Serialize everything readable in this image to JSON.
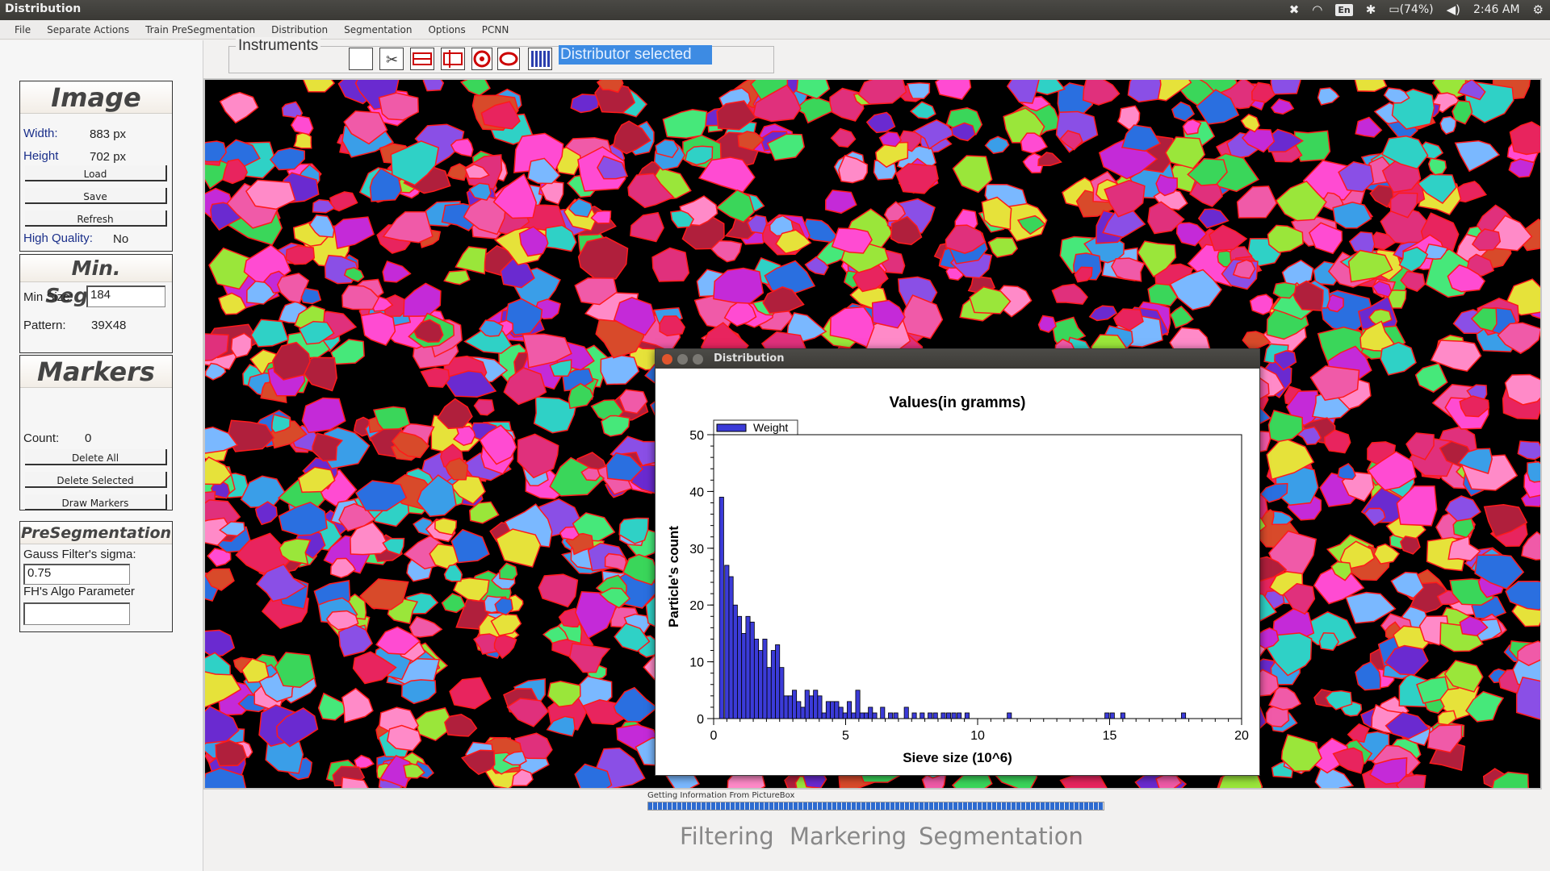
{
  "window": {
    "title": "Distribution"
  },
  "tray": {
    "lang": "En",
    "battery": "(74%)",
    "clock": "2:46 AM"
  },
  "menu": [
    "File",
    "Separate Actions",
    "Train PreSegmentation",
    "Distribution",
    "Segmentation",
    "Options",
    "PCNN"
  ],
  "image_group": {
    "title": "Image",
    "width_label": "Width:",
    "width_value": "883 px",
    "height_label": "Height",
    "height_value": "702 px",
    "load_label": "Load",
    "save_label": "Save",
    "refresh_label": "Refresh",
    "hq_label": "High Quality:",
    "hq_value": "No"
  },
  "min_segment": {
    "title": "Min. Segment",
    "min_size_label": "Min Size:",
    "min_size_value": "184",
    "pattern_label": "Pattern:",
    "pattern_value": "39X48"
  },
  "markers": {
    "title": "Markers",
    "count_label": "Count:",
    "count_value": "0",
    "delete_all_label": "Delete All",
    "delete_selected_label": "Delete Selected",
    "draw_markers_label": "Draw Markers"
  },
  "presegmentation": {
    "title": "PreSegmentation",
    "sigma_label": "Gauss Filter's sigma:",
    "sigma_value": "0.75",
    "fh_label": "FH's Algo Parameter",
    "fh_value": ""
  },
  "instruments": {
    "label": "Instruments",
    "tools": [
      "rectangle-tool-icon",
      "scissors-tool-icon",
      "ruler-tool-icon",
      "measure-tool-icon",
      "target-tool-icon",
      "ellipse-tool-icon",
      "distributor-tool-icon"
    ],
    "status": "Distributor selected"
  },
  "dialog": {
    "title": "Distribution"
  },
  "chart_data": {
    "type": "bar",
    "title": "Values(in gramms)",
    "xlabel": "Sieve size  (10^6)",
    "ylabel": "Particle's count",
    "legend": [
      "Weight"
    ],
    "legend_position": "top-left",
    "xlim": [
      0,
      20
    ],
    "ylim": [
      0,
      50
    ],
    "xticks": [
      0,
      5,
      10,
      15,
      20
    ],
    "yticks": [
      0,
      10,
      20,
      30,
      40,
      50
    ],
    "bar_width": 0.16,
    "series": [
      {
        "name": "Weight",
        "color": "#3b3bd8",
        "x": [
          0.3,
          0.5,
          0.66,
          0.82,
          0.98,
          1.14,
          1.3,
          1.46,
          1.62,
          1.78,
          1.94,
          2.1,
          2.26,
          2.42,
          2.58,
          2.74,
          2.9,
          3.06,
          3.22,
          3.38,
          3.54,
          3.7,
          3.86,
          4.02,
          4.18,
          4.34,
          4.5,
          4.66,
          4.82,
          4.98,
          5.14,
          5.3,
          5.46,
          5.62,
          5.78,
          5.94,
          6.1,
          6.4,
          6.7,
          6.9,
          7.3,
          7.6,
          7.9,
          8.2,
          8.4,
          8.7,
          8.9,
          9.1,
          9.3,
          9.6,
          11.2,
          14.9,
          15.1,
          15.5,
          17.8
        ],
        "values": [
          39,
          27,
          25,
          20,
          18,
          15,
          18,
          17,
          14,
          12,
          14,
          9,
          12,
          13,
          9,
          4,
          4,
          5,
          3,
          2,
          5,
          4,
          5,
          4,
          1,
          3,
          3,
          3,
          2,
          1,
          3,
          1,
          5,
          1,
          1,
          2,
          1,
          2,
          1,
          1,
          2,
          1,
          1,
          1,
          1,
          1,
          1,
          1,
          1,
          1,
          1,
          1,
          1,
          1,
          1
        ]
      }
    ]
  },
  "bottom": {
    "progress_label": "Getting Information From PictureBox",
    "progress": 1.0,
    "tabs": [
      "Filtering",
      "Markering",
      "Segmentation"
    ]
  }
}
